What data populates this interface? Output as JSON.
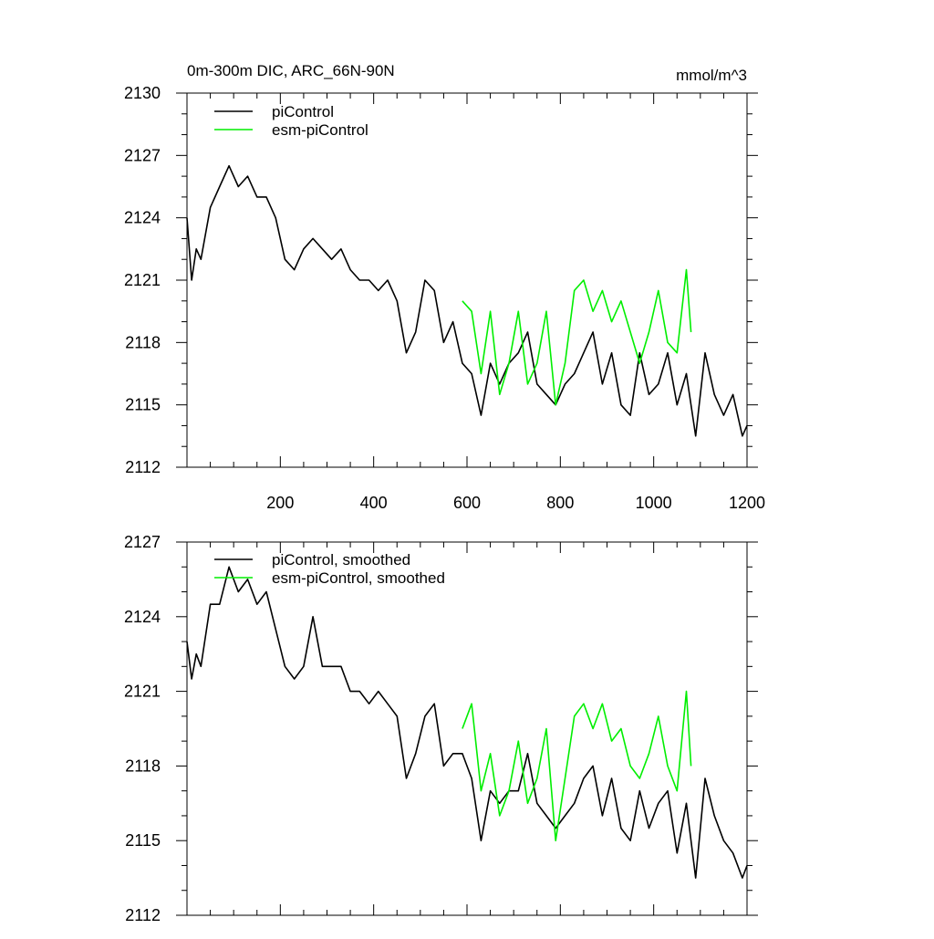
{
  "chart_data": [
    {
      "type": "line",
      "title": "0m-300m DIC, ARC_66N-90N",
      "units": "mmol/m^3",
      "xlim": [
        0,
        1200
      ],
      "ylim": [
        2112,
        2130
      ],
      "xticks": [
        200,
        400,
        600,
        800,
        1000,
        1200
      ],
      "yticks": [
        2112,
        2115,
        2118,
        2121,
        2124,
        2127,
        2130
      ],
      "legend": "top-left",
      "grid": false,
      "series": [
        {
          "name": "piControl",
          "color": "#000000",
          "x": [
            0,
            10,
            20,
            30,
            50,
            70,
            90,
            110,
            130,
            150,
            170,
            190,
            210,
            230,
            250,
            270,
            290,
            310,
            330,
            350,
            370,
            390,
            410,
            430,
            450,
            470,
            490,
            510,
            530,
            550,
            570,
            590,
            610,
            630,
            650,
            670,
            690,
            710,
            730,
            750,
            770,
            790,
            810,
            830,
            850,
            870,
            890,
            910,
            930,
            950,
            970,
            990,
            1010,
            1030,
            1050,
            1070,
            1090,
            1110,
            1130,
            1150,
            1170,
            1190,
            1200
          ],
          "values": [
            2124.0,
            2121.0,
            2122.5,
            2122.0,
            2124.5,
            2125.5,
            2126.5,
            2125.5,
            2126.0,
            2125.0,
            2125.0,
            2124.0,
            2122.0,
            2121.5,
            2122.5,
            2123.0,
            2122.5,
            2122.0,
            2122.5,
            2121.5,
            2121.0,
            2121.0,
            2120.5,
            2121.0,
            2120.0,
            2117.5,
            2118.5,
            2121.0,
            2120.5,
            2118.0,
            2119.0,
            2117.0,
            2116.5,
            2114.5,
            2117.0,
            2116.0,
            2117.0,
            2117.5,
            2118.5,
            2116.0,
            2115.5,
            2115.0,
            2116.0,
            2116.5,
            2117.5,
            2118.5,
            2116.0,
            2117.5,
            2115.0,
            2114.5,
            2117.5,
            2115.5,
            2116.0,
            2117.5,
            2115.0,
            2116.5,
            2113.5,
            2117.5,
            2115.5,
            2114.5,
            2115.5,
            2113.5,
            2114.0
          ]
        },
        {
          "name": "esm-piControl",
          "color": "#00ee00",
          "x": [
            590,
            610,
            630,
            650,
            670,
            690,
            710,
            730,
            750,
            770,
            790,
            810,
            830,
            850,
            870,
            890,
            910,
            930,
            950,
            970,
            990,
            1010,
            1030,
            1050,
            1070,
            1080
          ],
          "values": [
            2120.0,
            2119.5,
            2116.5,
            2119.5,
            2115.5,
            2117.0,
            2119.5,
            2116.0,
            2117.0,
            2119.5,
            2115.0,
            2117.0,
            2120.5,
            2121.0,
            2119.5,
            2120.5,
            2119.0,
            2120.0,
            2118.5,
            2117.0,
            2118.5,
            2120.5,
            2118.0,
            2117.5,
            2121.5,
            2118.5
          ]
        }
      ]
    },
    {
      "type": "line",
      "title": "",
      "xlim": [
        0,
        1200
      ],
      "ylim": [
        2112,
        2127
      ],
      "xticks": [],
      "yticks": [
        2112,
        2115,
        2118,
        2121,
        2124,
        2127
      ],
      "legend": "top-left",
      "grid": false,
      "series": [
        {
          "name": "piControl, smoothed",
          "color": "#000000",
          "x": [
            0,
            10,
            20,
            30,
            50,
            70,
            90,
            110,
            130,
            150,
            170,
            190,
            210,
            230,
            250,
            270,
            290,
            310,
            330,
            350,
            370,
            390,
            410,
            430,
            450,
            470,
            490,
            510,
            530,
            550,
            570,
            590,
            610,
            630,
            650,
            670,
            690,
            710,
            730,
            750,
            770,
            790,
            810,
            830,
            850,
            870,
            890,
            910,
            930,
            950,
            970,
            990,
            1010,
            1030,
            1050,
            1070,
            1090,
            1110,
            1130,
            1150,
            1170,
            1190,
            1200
          ],
          "values": [
            2123.0,
            2121.5,
            2122.5,
            2122.0,
            2124.5,
            2124.5,
            2126.0,
            2125.0,
            2125.5,
            2124.5,
            2125.0,
            2123.5,
            2122.0,
            2121.5,
            2122.0,
            2124.0,
            2122.0,
            2122.0,
            2122.0,
            2121.0,
            2121.0,
            2120.5,
            2121.0,
            2120.5,
            2120.0,
            2117.5,
            2118.5,
            2120.0,
            2120.5,
            2118.0,
            2118.5,
            2118.5,
            2117.5,
            2115.0,
            2117.0,
            2116.5,
            2117.0,
            2117.0,
            2118.5,
            2116.5,
            2116.0,
            2115.5,
            2116.0,
            2116.5,
            2117.5,
            2118.0,
            2116.0,
            2117.5,
            2115.5,
            2115.0,
            2117.0,
            2115.5,
            2116.5,
            2117.0,
            2114.5,
            2116.5,
            2113.5,
            2117.5,
            2116.0,
            2115.0,
            2114.5,
            2113.5,
            2114.0
          ]
        },
        {
          "name": "esm-piControl, smoothed",
          "color": "#00ee00",
          "x": [
            590,
            610,
            630,
            650,
            670,
            690,
            710,
            730,
            750,
            770,
            790,
            810,
            830,
            850,
            870,
            890,
            910,
            930,
            950,
            970,
            990,
            1010,
            1030,
            1050,
            1070,
            1080
          ],
          "values": [
            2119.5,
            2120.5,
            2117.0,
            2118.5,
            2116.0,
            2117.0,
            2119.0,
            2116.5,
            2117.5,
            2119.5,
            2115.0,
            2117.5,
            2120.0,
            2120.5,
            2119.5,
            2120.5,
            2119.0,
            2119.5,
            2118.0,
            2117.5,
            2118.5,
            2120.0,
            2118.0,
            2117.0,
            2121.0,
            2118.0
          ]
        }
      ]
    }
  ]
}
